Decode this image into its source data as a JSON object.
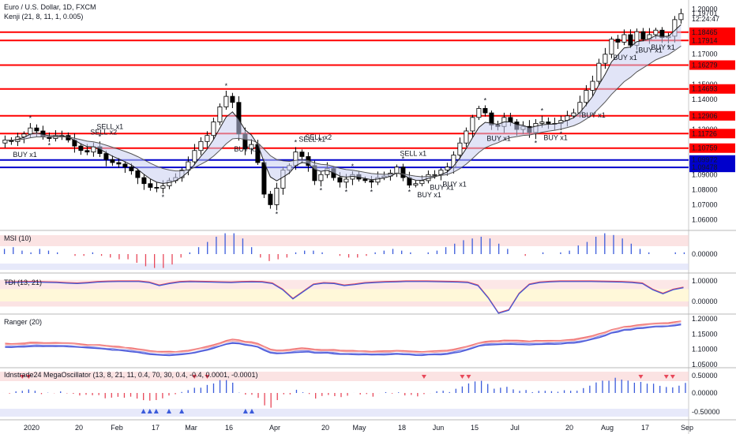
{
  "header": {
    "symbol": "Euro / U.S. Dollar, 1D, FXCM",
    "indicator": "Kenji (21, 8, 11, 1, 0.005)"
  },
  "colors": {
    "up_candle": "#ffffff",
    "down_candle": "#000000",
    "resistance": "#ff0000",
    "support": "#0000cc",
    "buy": "#3b5bdb",
    "sell": "#e8485a",
    "panel_red_band": "#f9d0d0",
    "panel_blue_band": "#d7dbf7"
  },
  "chart_data": [
    {
      "type": "candlestick",
      "title": "Euro / U.S. Dollar, 1D, FXCM",
      "y_ticks": [
        "1.20000",
        "1.19701",
        "1.18465",
        "1.17914",
        "1.17000",
        "1.16279",
        "1.15000",
        "1.14693",
        "1.14000",
        "1.12906",
        "1.12000",
        "1.11726",
        "1.10759",
        "1.09972",
        "1.09478",
        "1.09000",
        "1.08000",
        "1.07000",
        "1.06000"
      ],
      "ylim": [
        1.055,
        1.205
      ],
      "current_price": "1.19701",
      "countdown": "12:24:47",
      "x_ticks": [
        "2020",
        "20",
        "Feb",
        "17",
        "Mar",
        "16",
        "Apr",
        "20",
        "May",
        "18",
        "Jun",
        "15",
        "Jul",
        "20",
        "Aug",
        "17",
        "Sep"
      ],
      "horizontal_levels": [
        {
          "value": 1.18465,
          "label": "1.18465",
          "color": "red"
        },
        {
          "value": 1.17914,
          "label": "1.17914",
          "color": "red"
        },
        {
          "value": 1.16279,
          "label": "1.16279",
          "color": "red"
        },
        {
          "value": 1.14693,
          "label": "1.14693",
          "color": "red"
        },
        {
          "value": 1.12906,
          "label": "1.12906",
          "color": "red"
        },
        {
          "value": 1.11726,
          "label": "1.11726",
          "color": "red"
        },
        {
          "value": 1.10759,
          "label": "1.10759",
          "color": "red"
        },
        {
          "value": 1.09972,
          "label": "1.09972",
          "color": "blue"
        },
        {
          "value": 1.09478,
          "label": "1.09478",
          "color": "blue"
        }
      ],
      "closes": [
        1.113,
        1.112,
        1.115,
        1.117,
        1.121,
        1.119,
        1.115,
        1.114,
        1.116,
        1.116,
        1.113,
        1.109,
        1.106,
        1.105,
        1.1085,
        1.104,
        1.1,
        1.098,
        1.097,
        1.095,
        1.0925,
        1.088,
        1.084,
        1.0815,
        1.081,
        1.0825,
        1.086,
        1.088,
        1.093,
        1.0985,
        1.106,
        1.112,
        1.116,
        1.125,
        1.135,
        1.142,
        1.138,
        1.117,
        1.107,
        1.11,
        1.098,
        1.077,
        1.07,
        1.081,
        1.093,
        1.096,
        1.105,
        1.102,
        1.096,
        1.086,
        1.09,
        1.094,
        1.088,
        1.085,
        1.087,
        1.09,
        1.087,
        1.086,
        1.085,
        1.088,
        1.089,
        1.091,
        1.095,
        1.088,
        1.083,
        1.084,
        1.086,
        1.09,
        1.09,
        1.093,
        1.095,
        1.103,
        1.111,
        1.119,
        1.128,
        1.134,
        1.131,
        1.123,
        1.122,
        1.128,
        1.125,
        1.12,
        1.122,
        1.118,
        1.124,
        1.125,
        1.124,
        1.124,
        1.126,
        1.129,
        1.131,
        1.138,
        1.146,
        1.152,
        1.164,
        1.17,
        1.18,
        1.178,
        1.183,
        1.176,
        1.185,
        1.18,
        1.183,
        1.186,
        1.181,
        1.182,
        1.193,
        1.197
      ],
      "signals_buy": [
        "BUY x1",
        "BUY x1",
        "BUY x1",
        "BUY x1",
        "BUY x1",
        "BUY x1",
        "BUY x1",
        "BUY x1",
        "BUY x1",
        "BUY x1",
        "BUY x1"
      ],
      "signals_sell": [
        "SELL x2",
        "SELL x1",
        "SELL x1",
        "SELL x2",
        "SELL x1"
      ]
    },
    {
      "type": "bar",
      "title": "MSI (10)",
      "y_ticks": [
        "0.00000"
      ],
      "values": [
        0.3,
        0.4,
        0.2,
        0.1,
        0.3,
        0.2,
        0.1,
        0.0,
        -0.1,
        -0.1,
        0.1,
        -0.1,
        -0.2,
        -0.3,
        -0.3,
        -0.5,
        -0.7,
        -0.8,
        -0.8,
        -0.6,
        -0.2,
        0.1,
        0.4,
        0.7,
        1.0,
        1.2,
        1.2,
        0.9,
        0.4,
        -0.2,
        -0.4,
        -0.3,
        -0.2,
        0.1,
        0.2,
        0.2,
        0.1,
        0.0,
        -0.1,
        -0.2,
        -0.2,
        -0.1,
        0.1,
        0.2,
        0.3,
        0.2,
        0.1,
        0.0,
        0.1,
        0.2,
        0.4,
        0.6,
        0.8,
        0.9,
        1.0,
        0.9,
        0.6,
        0.3,
        0.0,
        -0.1,
        0.0,
        0.1,
        0.0,
        0.1,
        0.2,
        0.5,
        0.7,
        1.0,
        1.2,
        1.1,
        0.9,
        0.6,
        0.3,
        0.1,
        0.0,
        0.0,
        0.1,
        0.1
      ]
    },
    {
      "type": "line",
      "title": "TDI (13, 21)",
      "y_ticks": [
        "1.00000",
        "0.00000"
      ],
      "values": [
        0.95,
        0.96,
        0.97,
        0.97,
        0.96,
        0.95,
        0.92,
        0.9,
        0.93,
        0.97,
        0.99,
        1.0,
        1.0,
        1.0,
        0.95,
        0.8,
        0.9,
        0.97,
        0.99,
        0.98,
        0.97,
        0.96,
        0.95,
        0.97,
        0.98,
        0.97,
        0.9,
        0.6,
        0.15,
        0.5,
        0.85,
        0.92,
        0.9,
        0.8,
        0.85,
        0.92,
        0.95,
        0.97,
        0.98,
        1.0,
        1.0,
        1.0,
        0.99,
        0.98,
        0.97,
        0.95,
        0.8,
        0.2,
        -0.55,
        -0.4,
        0.4,
        0.85,
        0.95,
        0.98,
        1.0,
        1.0,
        1.0,
        1.0,
        0.99,
        0.98,
        0.97,
        0.95,
        0.9,
        0.6,
        0.4,
        0.6,
        0.7
      ]
    },
    {
      "type": "line",
      "title": "Ranger (20)",
      "y_ticks": [
        "1.20000",
        "1.15000",
        "1.10000",
        "1.05000"
      ]
    },
    {
      "type": "bar",
      "title": "Idnstrade24 MegaOscillator (13, 8, 21, 11, 0.4, 70, 30, 0.4, -0.4, 0.0001, -0.0001)",
      "y_ticks": [
        "0.50000",
        "0.00000",
        "-0.50000"
      ]
    }
  ]
}
